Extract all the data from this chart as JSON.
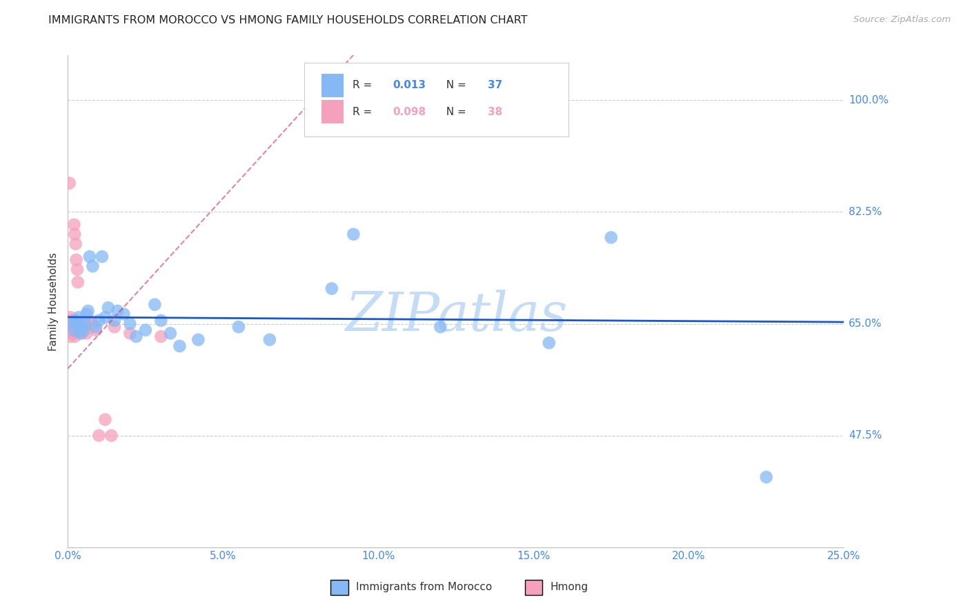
{
  "title": "IMMIGRANTS FROM MOROCCO VS HMONG FAMILY HOUSEHOLDS CORRELATION CHART",
  "source": "Source: ZipAtlas.com",
  "ylabel": "Family Households",
  "xlim": [
    0.0,
    25.0
  ],
  "ylim": [
    30.0,
    107.0
  ],
  "yticks": [
    47.5,
    65.0,
    82.5,
    100.0
  ],
  "xticks": [
    0.0,
    5.0,
    10.0,
    15.0,
    20.0,
    25.0
  ],
  "blue_R": 0.013,
  "blue_N": 37,
  "pink_R": 0.098,
  "pink_N": 38,
  "blue_color": "#85b8f5",
  "pink_color": "#f5a0bc",
  "trend_blue_color": "#1a56cc",
  "trend_pink_color": "#cc3366",
  "axis_label_color": "#4488ee",
  "title_color": "#222222",
  "watermark": "ZIPatlas",
  "watermark_color": "#c5dcf7",
  "blue_scatter_x": [
    0.15,
    0.2,
    0.25,
    0.3,
    0.35,
    0.4,
    0.45,
    0.5,
    0.55,
    0.6,
    0.65,
    0.7,
    0.8,
    0.9,
    1.0,
    1.1,
    1.2,
    1.3,
    1.5,
    1.6,
    1.8,
    2.0,
    2.2,
    2.5,
    2.8,
    3.0,
    3.3,
    3.6,
    4.2,
    5.5,
    6.5,
    8.5,
    9.2,
    12.0,
    15.5,
    17.5,
    22.5
  ],
  "blue_scatter_y": [
    65.0,
    64.0,
    65.5,
    65.0,
    66.0,
    63.5,
    64.5,
    64.0,
    65.0,
    66.5,
    67.0,
    75.5,
    74.0,
    64.5,
    65.5,
    75.5,
    66.0,
    67.5,
    65.5,
    67.0,
    66.5,
    65.0,
    63.0,
    64.0,
    68.0,
    65.5,
    63.5,
    61.5,
    62.5,
    64.5,
    62.5,
    70.5,
    79.0,
    64.5,
    62.0,
    78.5,
    41.0
  ],
  "pink_scatter_x": [
    0.05,
    0.07,
    0.08,
    0.1,
    0.12,
    0.12,
    0.14,
    0.15,
    0.17,
    0.18,
    0.2,
    0.22,
    0.22,
    0.25,
    0.27,
    0.28,
    0.3,
    0.32,
    0.35,
    0.38,
    0.4,
    0.42,
    0.45,
    0.48,
    0.5,
    0.55,
    0.6,
    0.7,
    0.8,
    0.9,
    1.0,
    1.2,
    1.4,
    1.5,
    2.0,
    3.0,
    0.05,
    0.08
  ],
  "pink_scatter_y": [
    65.5,
    65.0,
    66.0,
    65.0,
    65.0,
    64.0,
    63.5,
    65.5,
    64.5,
    63.5,
    80.5,
    79.0,
    63.0,
    77.5,
    75.0,
    65.0,
    73.5,
    71.5,
    65.0,
    64.0,
    65.0,
    64.5,
    63.5,
    65.0,
    64.5,
    64.0,
    63.5,
    65.5,
    65.0,
    64.0,
    47.5,
    50.0,
    47.5,
    64.5,
    63.5,
    63.0,
    87.0,
    63.0
  ],
  "pink_trend_x0": 0.0,
  "pink_trend_y0": 58.0,
  "pink_trend_x1": 4.5,
  "pink_trend_y1": 82.0,
  "blue_trend_y": 65.0
}
